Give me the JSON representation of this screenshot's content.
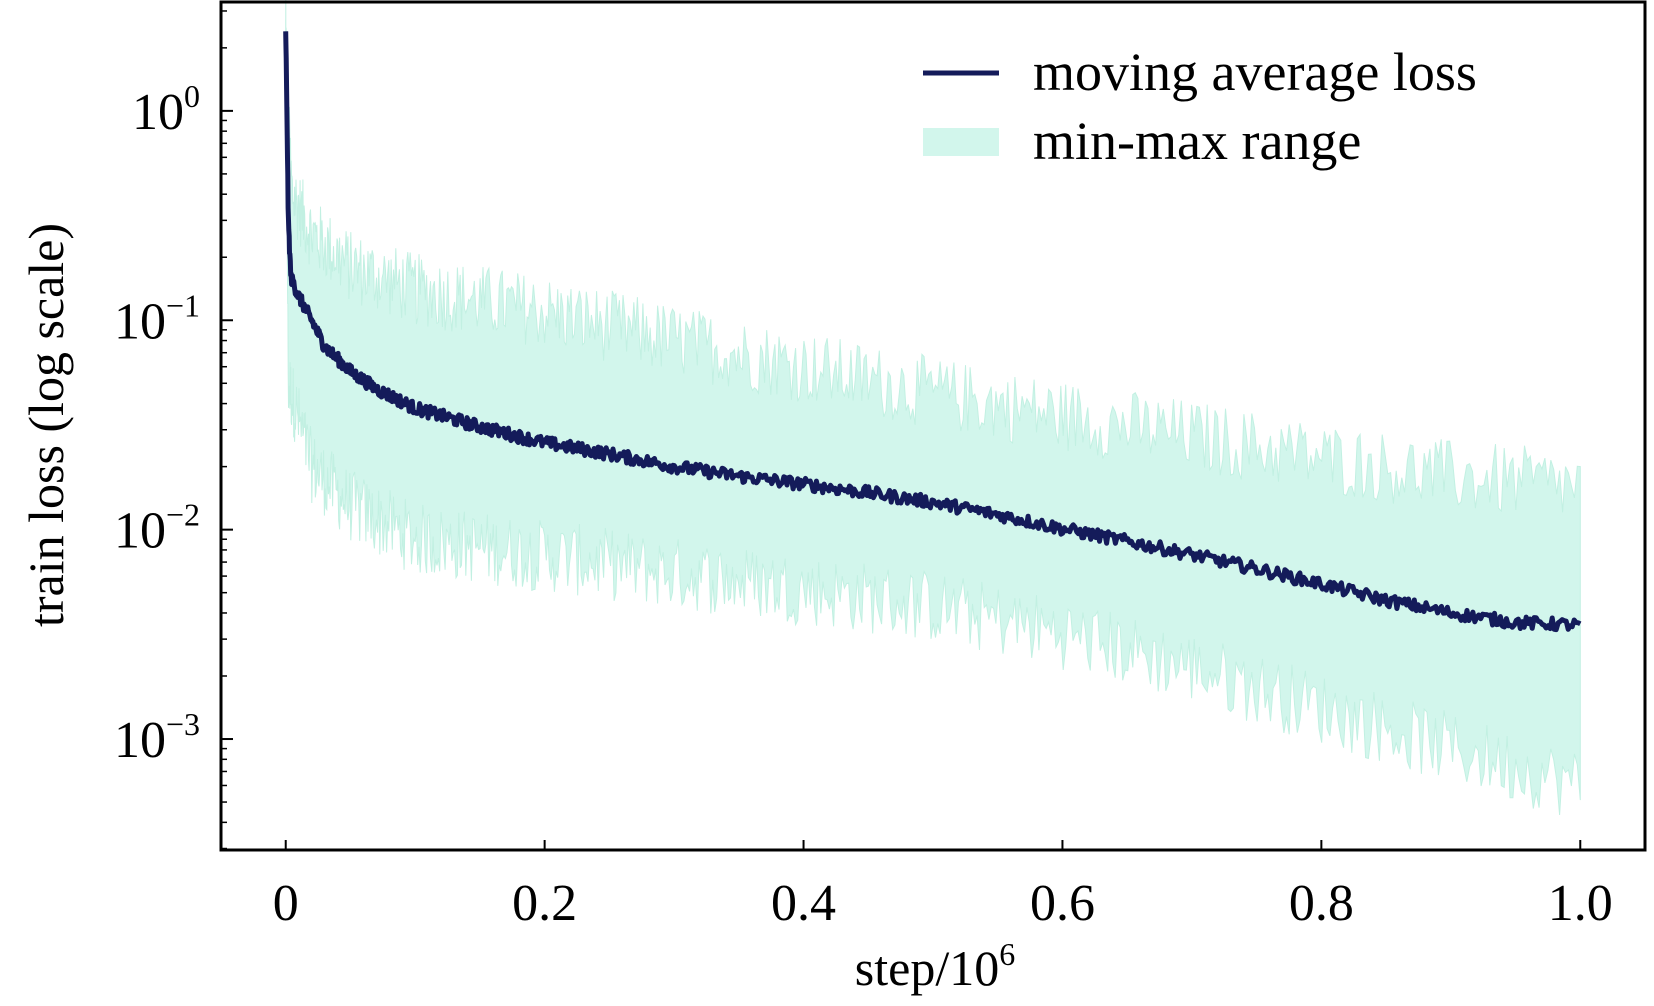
{
  "chart_data": {
    "type": "line",
    "title": "",
    "xlabel": "step/10",
    "xlabel_superscript": "6",
    "ylabel": "train loss (log scale)",
    "x_range": [
      -0.05,
      1.05
    ],
    "y_scale": "log",
    "y_log_range": [
      -3.53,
      0.52
    ],
    "x_ticks": [
      {
        "value": 0.0,
        "label": "0"
      },
      {
        "value": 0.2,
        "label": "0.2"
      },
      {
        "value": 0.4,
        "label": "0.4"
      },
      {
        "value": 0.6,
        "label": "0.6"
      },
      {
        "value": 0.8,
        "label": "0.8"
      },
      {
        "value": 1.0,
        "label": "1.0"
      }
    ],
    "y_ticks": [
      {
        "value": 1,
        "base": "10",
        "exponent": "0"
      },
      {
        "value": 0.1,
        "base": "10",
        "exponent": "−1"
      },
      {
        "value": 0.01,
        "base": "10",
        "exponent": "−2"
      },
      {
        "value": 0.001,
        "base": "10",
        "exponent": "−3"
      }
    ],
    "legend": {
      "position": "top-right",
      "entries": [
        {
          "label": "moving average loss",
          "kind": "line",
          "color": "#141b5a"
        },
        {
          "label": "min-max range",
          "kind": "band",
          "color": "#d2f6ec"
        }
      ]
    },
    "series": [
      {
        "name": "moving average loss",
        "kind": "line",
        "color": "#141b5a",
        "points": [
          [
            0.0,
            2.4
          ],
          [
            0.001,
            0.9
          ],
          [
            0.002,
            0.3
          ],
          [
            0.004,
            0.16
          ],
          [
            0.01,
            0.13
          ],
          [
            0.02,
            0.1
          ],
          [
            0.03,
            0.075
          ],
          [
            0.05,
            0.057
          ],
          [
            0.07,
            0.047
          ],
          [
            0.1,
            0.038
          ],
          [
            0.15,
            0.031
          ],
          [
            0.2,
            0.026
          ],
          [
            0.25,
            0.023
          ],
          [
            0.3,
            0.02
          ],
          [
            0.35,
            0.018
          ],
          [
            0.4,
            0.0165
          ],
          [
            0.45,
            0.015
          ],
          [
            0.5,
            0.0135
          ],
          [
            0.55,
            0.0118
          ],
          [
            0.6,
            0.0101
          ],
          [
            0.65,
            0.0088
          ],
          [
            0.7,
            0.0076
          ],
          [
            0.75,
            0.0065
          ],
          [
            0.8,
            0.0055
          ],
          [
            0.85,
            0.0046
          ],
          [
            0.9,
            0.004
          ],
          [
            0.95,
            0.0036
          ],
          [
            1.0,
            0.0035
          ]
        ]
      },
      {
        "name": "min-max range",
        "kind": "band",
        "color": "#d2f6ec",
        "upper": [
          [
            0.0,
            2.4
          ],
          [
            0.002,
            0.9
          ],
          [
            0.005,
            0.4
          ],
          [
            0.02,
            0.26
          ],
          [
            0.05,
            0.18
          ],
          [
            0.1,
            0.14
          ],
          [
            0.2,
            0.11
          ],
          [
            0.3,
            0.08
          ],
          [
            0.4,
            0.06
          ],
          [
            0.5,
            0.045
          ],
          [
            0.6,
            0.035
          ],
          [
            0.7,
            0.028
          ],
          [
            0.8,
            0.022
          ],
          [
            0.9,
            0.018
          ],
          [
            1.0,
            0.016
          ]
        ],
        "lower": [
          [
            0.0,
            2.4
          ],
          [
            0.002,
            0.05
          ],
          [
            0.02,
            0.02
          ],
          [
            0.05,
            0.013
          ],
          [
            0.1,
            0.009
          ],
          [
            0.2,
            0.0075
          ],
          [
            0.3,
            0.0062
          ],
          [
            0.4,
            0.0052
          ],
          [
            0.5,
            0.0043
          ],
          [
            0.6,
            0.0032
          ],
          [
            0.7,
            0.0022
          ],
          [
            0.8,
            0.0014
          ],
          [
            0.9,
            0.0009
          ],
          [
            1.0,
            0.0006
          ]
        ]
      }
    ]
  }
}
